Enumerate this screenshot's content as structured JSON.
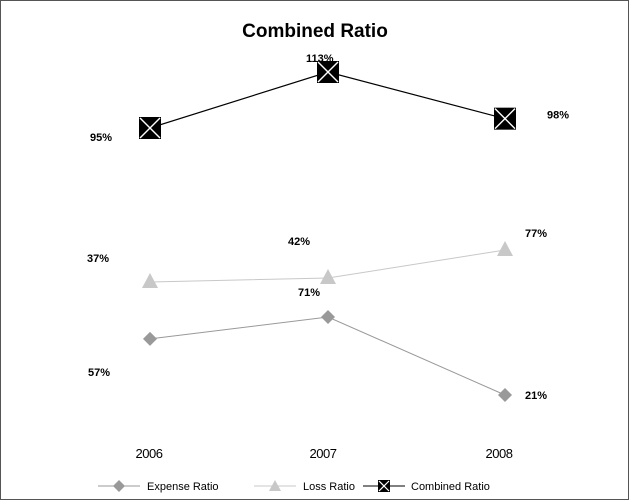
{
  "chart_data": {
    "type": "line",
    "title": "Combined Ratio",
    "categories": [
      "2006",
      "2007",
      "2008"
    ],
    "series": [
      {
        "name": "Expense Ratio",
        "values": [
          57,
          71,
          21
        ],
        "labels": [
          "57%",
          "71%",
          "21%"
        ],
        "color": "#999999",
        "marker": "diamond"
      },
      {
        "name": "Loss Ratio",
        "values": [
          37,
          42,
          77
        ],
        "labels": [
          "37%",
          "42%",
          "77%"
        ],
        "color": "#c8c8c8",
        "marker": "triangle"
      },
      {
        "name": "Combined Ratio",
        "values": [
          95,
          113,
          98
        ],
        "labels": [
          "95%",
          "113%",
          "98%"
        ],
        "color": "#000000",
        "marker": "x-square"
      }
    ],
    "legend_position": "bottom",
    "grid": false
  }
}
